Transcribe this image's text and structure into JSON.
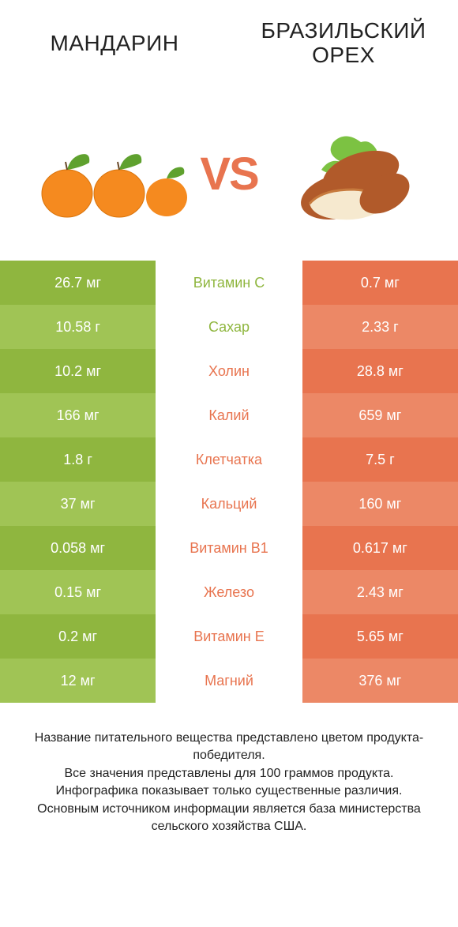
{
  "colors": {
    "left_bar": "#8fb63f",
    "left_bar_alt": "#a0c455",
    "right_bar": "#e8744f",
    "right_bar_alt": "#ec8866",
    "mid_left": "#8fb63f",
    "mid_right": "#e8744f",
    "vs": "#e8744f",
    "title": "#222222"
  },
  "header": {
    "left_title": "Mандарин",
    "right_title": "Бразильский орех"
  },
  "hero": {
    "vs_text": "VS"
  },
  "rows": [
    {
      "left": "26.7 мг",
      "label": "Витамин C",
      "right": "0.7 мг",
      "winner": "left"
    },
    {
      "left": "10.58 г",
      "label": "Сахар",
      "right": "2.33 г",
      "winner": "left"
    },
    {
      "left": "10.2 мг",
      "label": "Холин",
      "right": "28.8 мг",
      "winner": "right"
    },
    {
      "left": "166 мг",
      "label": "Калий",
      "right": "659 мг",
      "winner": "right"
    },
    {
      "left": "1.8 г",
      "label": "Клетчатка",
      "right": "7.5 г",
      "winner": "right"
    },
    {
      "left": "37 мг",
      "label": "Кальций",
      "right": "160 мг",
      "winner": "right"
    },
    {
      "left": "0.058 мг",
      "label": "Витамин B1",
      "right": "0.617 мг",
      "winner": "right"
    },
    {
      "left": "0.15 мг",
      "label": "Железо",
      "right": "2.43 мг",
      "winner": "right"
    },
    {
      "left": "0.2 мг",
      "label": "Витамин E",
      "right": "5.65 мг",
      "winner": "right"
    },
    {
      "left": "12 мг",
      "label": "Магний",
      "right": "376 мг",
      "winner": "right"
    }
  ],
  "footer": {
    "line1": "Название питательного вещества представлено цветом продукта-победителя.",
    "line2": "Все значения представлены для 100 граммов продукта.",
    "line3": "Инфографика показывает только существенные различия.",
    "line4": "Основным источником информации является база министерства сельского хозяйства США."
  }
}
